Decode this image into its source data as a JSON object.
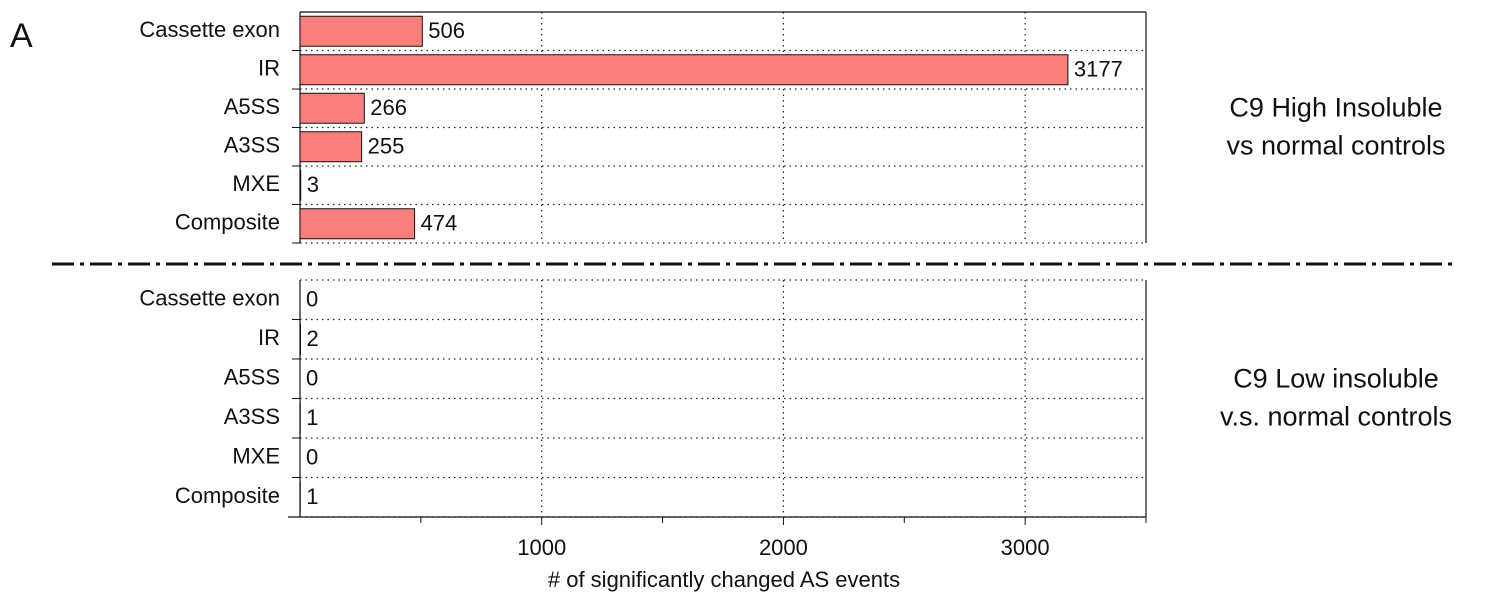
{
  "panel_label": "A",
  "chart_data": [
    {
      "type": "barh",
      "title": [
        "C9 High Insoluble",
        "vs normal controls"
      ],
      "categories": [
        "Cassette exon",
        "IR",
        "A5SS",
        "A3SS",
        "MXE",
        "Composite"
      ],
      "values": [
        506,
        3177,
        266,
        255,
        3,
        474
      ],
      "color": "#fa7f7c",
      "xlim": [
        0,
        3500
      ],
      "xticks": [
        1000,
        2000,
        3000
      ],
      "grid": true
    },
    {
      "type": "barh",
      "title": [
        "C9 Low insoluble",
        "v.s. normal controls"
      ],
      "categories": [
        "Cassette exon",
        "IR",
        "A5SS",
        "A3SS",
        "MXE",
        "Composite"
      ],
      "values": [
        0,
        2,
        0,
        1,
        0,
        1
      ],
      "color": "#fa7f7c",
      "xlim": [
        0,
        3500
      ],
      "xticks": [
        1000,
        2000,
        3000
      ],
      "xminor_ticks": [
        500,
        1500,
        2500,
        3500
      ],
      "grid": true,
      "xlabel": "# of significantly changed AS events"
    }
  ]
}
